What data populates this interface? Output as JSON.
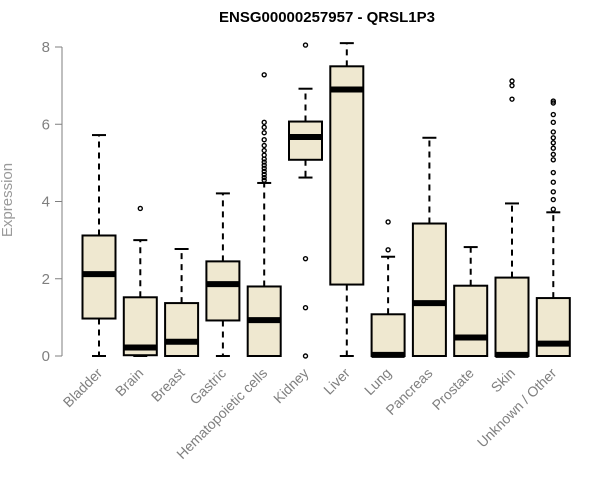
{
  "chart_data": {
    "type": "boxplot",
    "title": "ENSG00000257957 - QRSL1P3",
    "xlabel": "",
    "ylabel": "Expression",
    "ylim": [
      0,
      8
    ],
    "yticks": [
      0,
      2,
      4,
      6,
      8
    ],
    "box_fill": "#efe8d0",
    "stroke": "#000000",
    "axis_color": "#7f7f7f",
    "categories": [
      "Bladder",
      "Brain",
      "Breast",
      "Gastric",
      "Hematopoietic cells",
      "Kidney",
      "Liver",
      "Lung",
      "Pancreas",
      "Prostate",
      "Skin",
      "Unknown / Other"
    ],
    "boxes": [
      {
        "name": "Bladder",
        "min": 0.0,
        "q1": 0.97,
        "median": 2.12,
        "q3": 3.12,
        "max": 5.72,
        "outliers": []
      },
      {
        "name": "Brain",
        "min": 0.0,
        "q1": 0.02,
        "median": 0.22,
        "q3": 1.52,
        "max": 3.0,
        "outliers": [
          3.82
        ]
      },
      {
        "name": "Breast",
        "min": 0.0,
        "q1": 0.0,
        "median": 0.37,
        "q3": 1.37,
        "max": 2.77,
        "outliers": []
      },
      {
        "name": "Gastric",
        "min": 0.0,
        "q1": 0.92,
        "median": 1.86,
        "q3": 2.45,
        "max": 4.21,
        "outliers": []
      },
      {
        "name": "Hematopoietic cells",
        "min": 0.0,
        "q1": 0.0,
        "median": 0.93,
        "q3": 1.8,
        "max": 4.48,
        "outliers": [
          4.55,
          4.62,
          4.7,
          4.78,
          4.86,
          4.94,
          5.02,
          5.1,
          5.2,
          5.32,
          5.45,
          5.6,
          5.78,
          5.92,
          6.05,
          7.28
        ]
      },
      {
        "name": "Kidney",
        "min": 4.62,
        "q1": 5.08,
        "median": 5.67,
        "q3": 6.07,
        "max": 6.92,
        "outliers": [
          8.05,
          2.52,
          1.25,
          0.0
        ]
      },
      {
        "name": "Liver",
        "min": 0.0,
        "q1": 1.85,
        "median": 6.9,
        "q3": 7.5,
        "max": 8.1,
        "outliers": []
      },
      {
        "name": "Lung",
        "min": 0.0,
        "q1": 0.0,
        "median": 0.03,
        "q3": 1.08,
        "max": 2.57,
        "outliers": [
          2.75,
          3.47
        ]
      },
      {
        "name": "Pancreas",
        "min": 0.0,
        "q1": 0.0,
        "median": 1.37,
        "q3": 3.43,
        "max": 5.65,
        "outliers": []
      },
      {
        "name": "Prostate",
        "min": 0.0,
        "q1": 0.0,
        "median": 0.48,
        "q3": 1.82,
        "max": 2.82,
        "outliers": []
      },
      {
        "name": "Skin",
        "min": 0.0,
        "q1": 0.0,
        "median": 0.03,
        "q3": 2.03,
        "max": 3.95,
        "outliers": [
          6.65,
          7.0,
          7.12
        ]
      },
      {
        "name": "Unknown / Other",
        "min": 0.0,
        "q1": 0.0,
        "median": 0.32,
        "q3": 1.5,
        "max": 3.72,
        "outliers": [
          3.8,
          4.05,
          4.25,
          4.5,
          4.75,
          5.08,
          5.22,
          5.38,
          5.52,
          5.65,
          5.8,
          6.05,
          6.25,
          6.55,
          6.6
        ]
      }
    ]
  }
}
